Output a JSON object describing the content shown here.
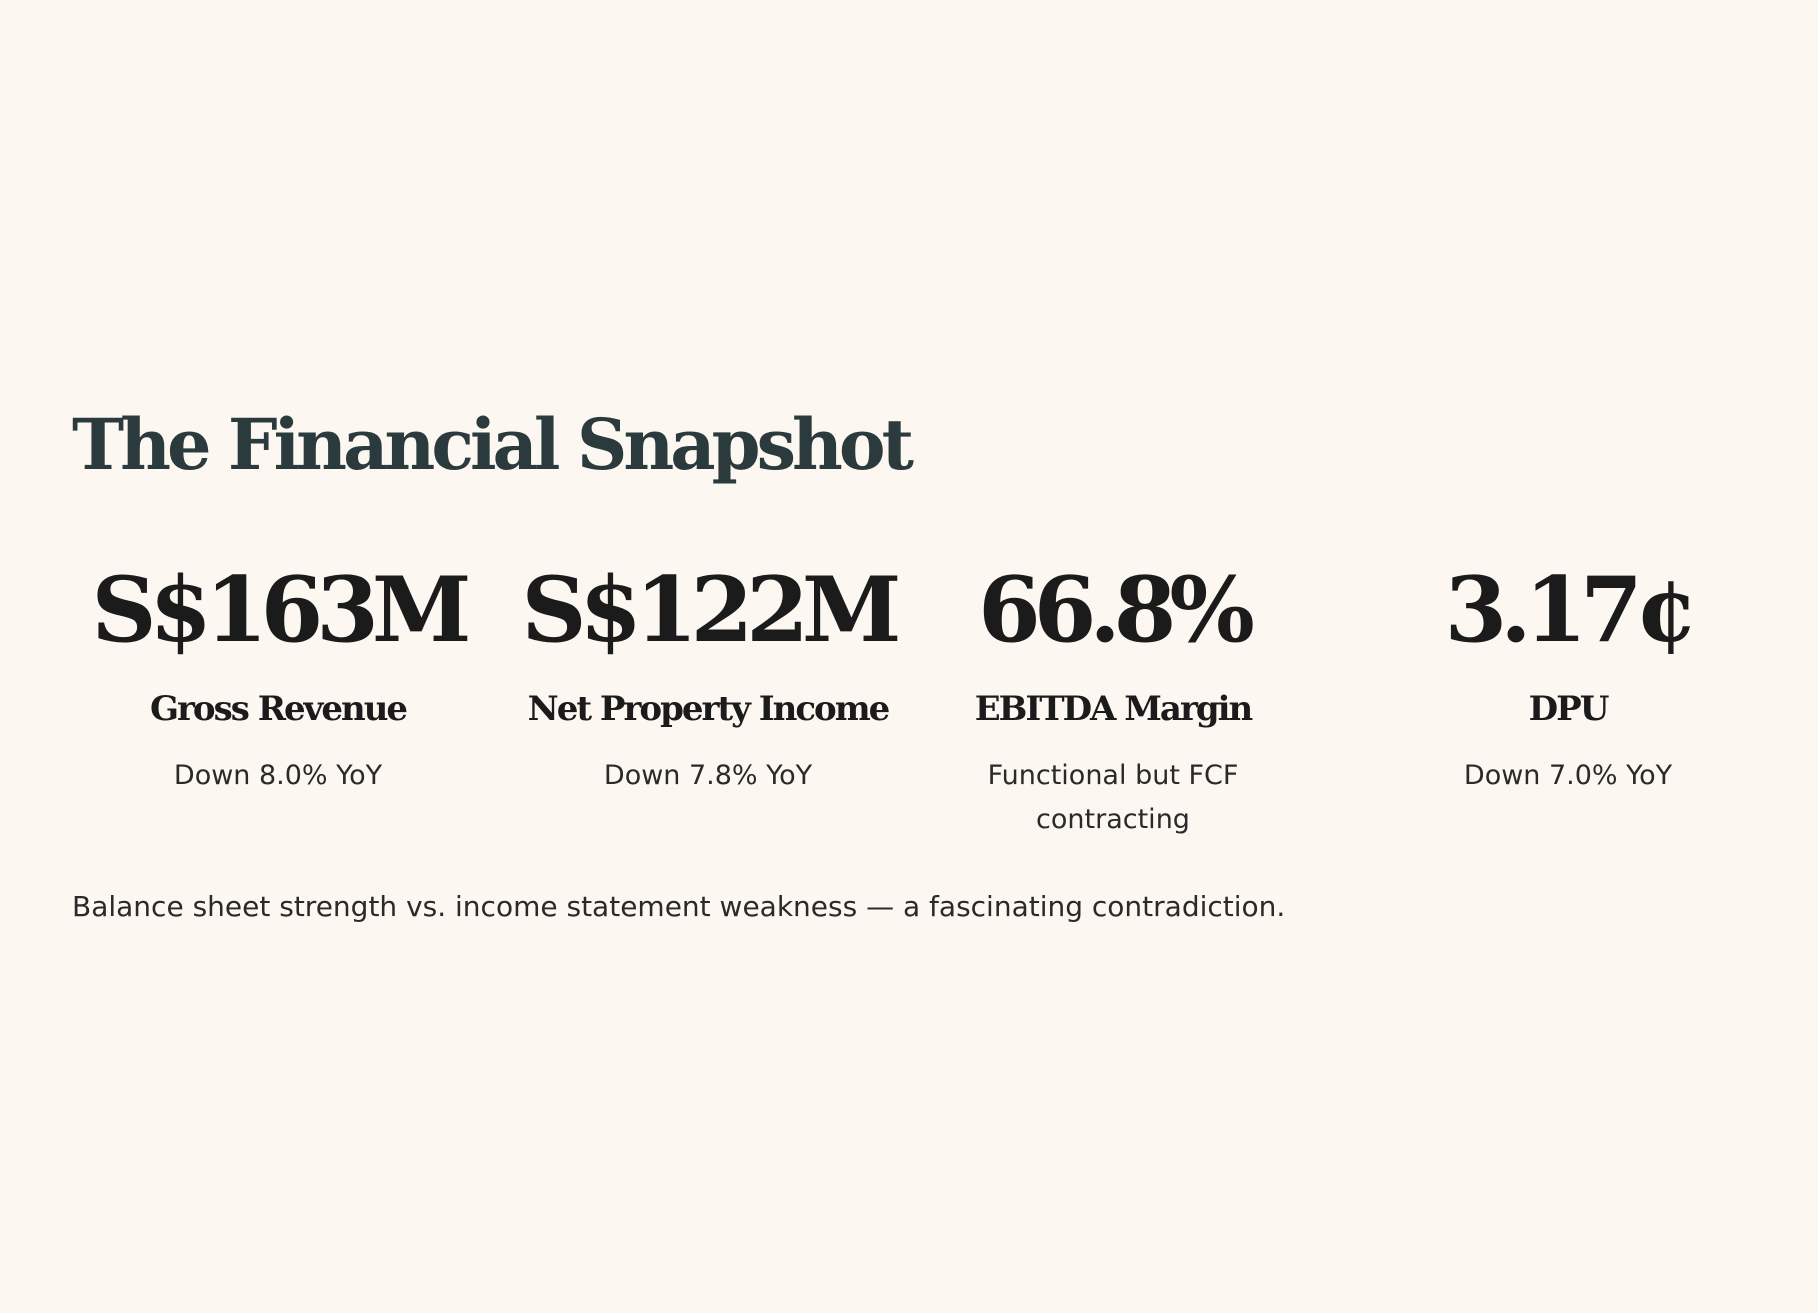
{
  "title": "The Financial Snapshot",
  "metrics": [
    {
      "value": "S$163M",
      "label": "Gross Revenue",
      "note": "Down 8.0% YoY"
    },
    {
      "value": "S$122M",
      "label": "Net Property Income",
      "note": "Down 7.8% YoY"
    },
    {
      "value": "66.8%",
      "label": "EBITDA Margin",
      "note": "Functional but FCF contracting"
    },
    {
      "value": "3.17¢",
      "label": "DPU",
      "note": "Down 7.0% YoY"
    }
  ],
  "footnote": "Balance sheet strength vs. income statement weakness — a fascinating contradiction.",
  "colors": {
    "background": "#fdf7f1",
    "title": "#2b3a3d",
    "text": "#1b1b1b"
  }
}
